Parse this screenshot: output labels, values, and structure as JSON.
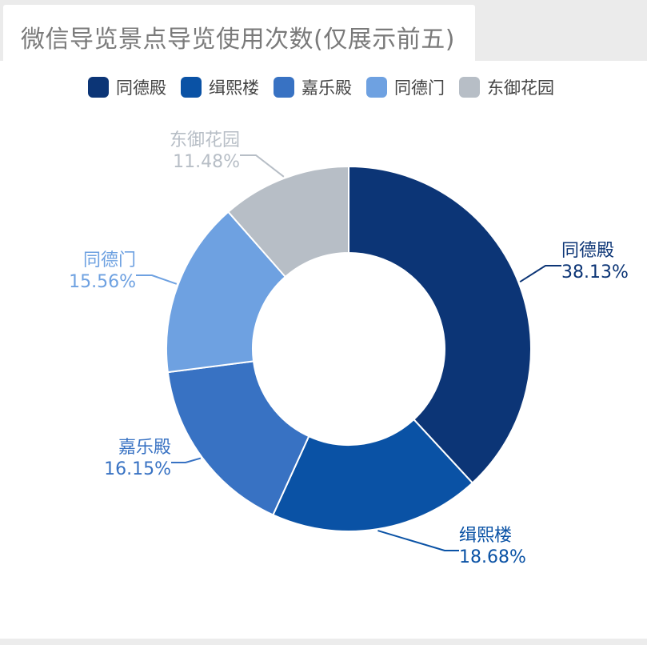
{
  "title": "微信导览景点导览使用次数(仅展示前五)",
  "chart_data": {
    "type": "pie",
    "title": "微信导览景点导览使用次数(仅展示前五)",
    "donut": true,
    "legend_position": "top",
    "series": [
      {
        "name": "同德殿",
        "value": 38.13,
        "label": "38.13%",
        "color": "#0c3576"
      },
      {
        "name": "缉熙楼",
        "value": 18.68,
        "label": "18.68%",
        "color": "#0a52a5"
      },
      {
        "name": "嘉乐殿",
        "value": 16.15,
        "label": "16.15%",
        "color": "#3872c3"
      },
      {
        "name": "同德门",
        "value": 15.56,
        "label": "15.56%",
        "color": "#6ea1e1"
      },
      {
        "name": "东御花园",
        "value": 11.48,
        "label": "11.48%",
        "color": "#b7bec6"
      }
    ]
  }
}
